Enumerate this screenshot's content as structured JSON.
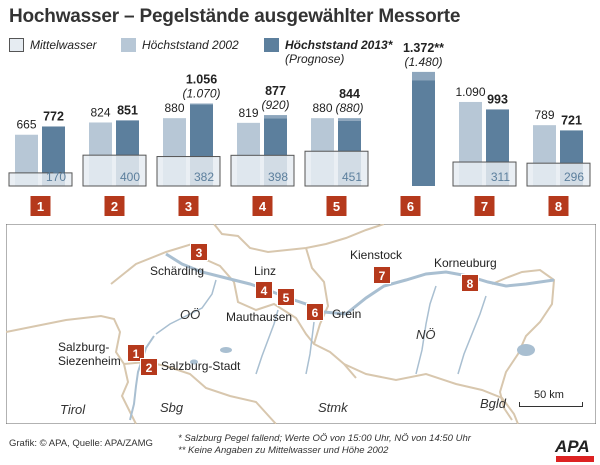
{
  "title": "Hochwasser – Pegelstände ausgewählter Messorte",
  "legend": {
    "mittelwasser": "Mittelwasser",
    "hoechststand_2002": "Höchststand 2002",
    "hoechststand_2013": "Höchststand 2013*",
    "prognose": "(Prognose)"
  },
  "colors": {
    "mittelwasser_fill": "#e6ecf2",
    "hoechst_2002": "#b7c7d6",
    "hoechst_2013": "#5c7f9d",
    "prognose_overlay": "#8da6bd",
    "marker": "#b5391c",
    "map_water": "#a9bfd1",
    "map_border": "#d8c7ae"
  },
  "chart_data": {
    "type": "bar",
    "categories": [
      "1",
      "2",
      "3",
      "4",
      "5",
      "6",
      "7",
      "8"
    ],
    "series": [
      {
        "name": "Mittelwasser",
        "values": [
          170,
          400,
          382,
          398,
          451,
          null,
          311,
          296
        ],
        "labels": [
          "170",
          "400",
          "382",
          "398",
          "451",
          "",
          "311",
          "296"
        ]
      },
      {
        "name": "Höchststand 2002",
        "values": [
          665,
          824,
          880,
          819,
          880,
          null,
          1090,
          789
        ],
        "labels": [
          "665",
          "824",
          "880",
          "819",
          "880",
          "",
          "1.090",
          "789"
        ]
      },
      {
        "name": "Höchststand 2013*",
        "values": [
          772,
          851,
          1056,
          877,
          844,
          1372,
          993,
          721
        ],
        "labels": [
          "772",
          "851",
          "1.056",
          "877",
          "844",
          "1.372**",
          "993",
          "721"
        ]
      }
    ],
    "prognose": [
      null,
      null,
      1070,
      920,
      880,
      1480,
      null,
      null
    ],
    "prognose_labels": [
      "",
      "",
      "(1.070)",
      "(920)",
      "(880)",
      "(1.480)",
      "",
      ""
    ]
  },
  "map": {
    "stations": [
      {
        "num": "1",
        "name": "Salzburg-\nSiezenheim"
      },
      {
        "num": "2",
        "name": "Salzburg-Stadt"
      },
      {
        "num": "3",
        "name": "Schärding"
      },
      {
        "num": "4",
        "name": "Linz"
      },
      {
        "num": "5",
        "name": "Mauthausen"
      },
      {
        "num": "6",
        "name": "Grein"
      },
      {
        "num": "7",
        "name": "Kienstock"
      },
      {
        "num": "8",
        "name": "Korneuburg"
      }
    ],
    "regions": [
      "OÖ",
      "NÖ",
      "Tirol",
      "Sbg",
      "Stmk",
      "Bgld"
    ],
    "scale_label": "50 km"
  },
  "footer": {
    "source": "Grafik: © APA, Quelle: APA/ZAMG",
    "note1": "* Salzburg Pegel fallend; Werte OÖ von 15:00 Uhr, NÖ von 14:50 Uhr",
    "note2": "** Keine Angaben zu Mittelwasser und Höhe 2002",
    "logo": "APA"
  }
}
